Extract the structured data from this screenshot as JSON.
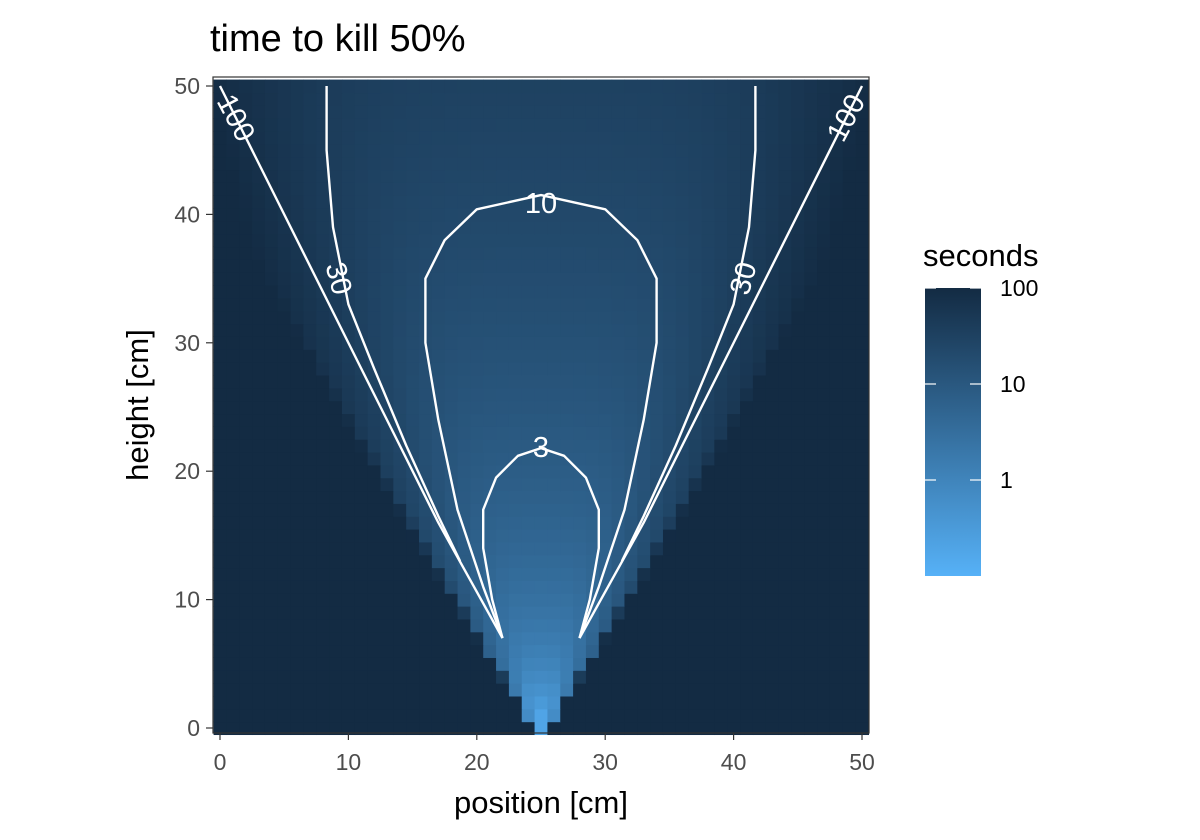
{
  "chart_data": {
    "type": "heatmap",
    "title": "time to kill 50%",
    "xlabel": "position [cm]",
    "ylabel": "height [cm]",
    "xlim": [
      0,
      50
    ],
    "ylim": [
      0,
      50
    ],
    "x_ticks": [
      0,
      10,
      20,
      30,
      40,
      50
    ],
    "y_ticks": [
      0,
      10,
      20,
      30,
      40,
      50
    ],
    "x_tick_labels": [
      "0",
      "10",
      "20",
      "30",
      "40",
      "50"
    ],
    "y_tick_labels": [
      "0",
      "10",
      "20",
      "30",
      "40",
      "50"
    ],
    "grid": false,
    "color_scale": {
      "title": "seconds",
      "scale": "log",
      "low_color": "#56B1F7",
      "high_color": "#132B43",
      "min": 0.1,
      "max": 100,
      "breaks": [
        1,
        10,
        100
      ],
      "break_labels": [
        "1",
        "10",
        "100"
      ],
      "legend_position": "right"
    },
    "grid_resolution_cm": 1,
    "field_model": {
      "source_x": 25,
      "source_y": 0,
      "cone_half_angle_deg": 33,
      "description_values": {
        "min_seconds_at_source": 0.12,
        "seconds_outside_cone": 100
      }
    },
    "contours": [
      {
        "level": 3,
        "label": "3",
        "points": [
          [
            22,
            7
          ],
          [
            21.2,
            10
          ],
          [
            20.5,
            14
          ],
          [
            20.5,
            17
          ],
          [
            21.5,
            19.5
          ],
          [
            23.2,
            21.2
          ],
          [
            25,
            21.8
          ],
          [
            26.8,
            21.2
          ],
          [
            28.5,
            19.5
          ],
          [
            29.5,
            17
          ],
          [
            29.5,
            14
          ],
          [
            28.8,
            10
          ],
          [
            28,
            7
          ]
        ]
      },
      {
        "level": 10,
        "label": "10",
        "points": [
          [
            22,
            7
          ],
          [
            20.5,
            11
          ],
          [
            18.5,
            17
          ],
          [
            17,
            24
          ],
          [
            16,
            30
          ],
          [
            16,
            35
          ],
          [
            17.5,
            38
          ],
          [
            20,
            40.4
          ],
          [
            25,
            41.5
          ],
          [
            30,
            40.4
          ],
          [
            32.5,
            38
          ],
          [
            34,
            35
          ],
          [
            34,
            30
          ],
          [
            33,
            24
          ],
          [
            31.5,
            17
          ],
          [
            29.5,
            11
          ],
          [
            28,
            7
          ]
        ]
      },
      {
        "level": 30,
        "label": "30",
        "left_points": [
          [
            18.7,
            13
          ],
          [
            17,
            16.5
          ],
          [
            14.5,
            22
          ],
          [
            12,
            28
          ],
          [
            10,
            33
          ],
          [
            8.8,
            39
          ],
          [
            8.3,
            45
          ],
          [
            8.3,
            50
          ]
        ],
        "right_points": [
          [
            31.3,
            13
          ],
          [
            33,
            16.5
          ],
          [
            35.5,
            22
          ],
          [
            38,
            28
          ],
          [
            40,
            33
          ],
          [
            41.2,
            39
          ],
          [
            41.7,
            45
          ],
          [
            41.7,
            50
          ]
        ]
      },
      {
        "level": 100,
        "label": "100",
        "left_points": [
          [
            22,
            7
          ],
          [
            19.5,
            11.5
          ],
          [
            17,
            16
          ],
          [
            14,
            22
          ],
          [
            11,
            28
          ],
          [
            8,
            34
          ],
          [
            5,
            40
          ],
          [
            2.5,
            45
          ],
          [
            0,
            50
          ]
        ],
        "right_points": [
          [
            28,
            7
          ],
          [
            30.5,
            11.5
          ],
          [
            33,
            16
          ],
          [
            36,
            22
          ],
          [
            39,
            28
          ],
          [
            42,
            34
          ],
          [
            45,
            40
          ],
          [
            47.5,
            45
          ],
          [
            50,
            50
          ]
        ]
      }
    ],
    "contour_labels": [
      {
        "text": "100",
        "x": 1.2,
        "y": 47.5,
        "angle": 62
      },
      {
        "text": "100",
        "x": 48.8,
        "y": 47.5,
        "angle": -62
      },
      {
        "text": "30",
        "x": 9.2,
        "y": 35,
        "angle": 75
      },
      {
        "text": "30",
        "x": 40.8,
        "y": 35,
        "angle": -75
      },
      {
        "text": "10",
        "x": 25,
        "y": 40.8,
        "angle": 0
      },
      {
        "text": "3",
        "x": 25,
        "y": 21.8,
        "angle": 0
      }
    ]
  }
}
